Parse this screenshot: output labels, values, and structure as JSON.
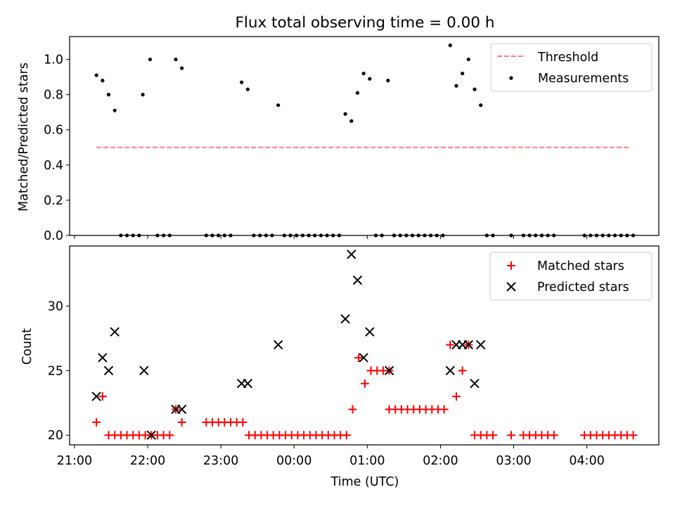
{
  "chart_data": [
    {
      "type": "scatter",
      "title": "Flux total observing time = 0.00 h",
      "xlabel": "",
      "ylabel": "Matched/Predicted stars",
      "xlim": [
        "20:56",
        "04:59"
      ],
      "ylim": [
        0,
        1.13
      ],
      "yticks": [
        0.0,
        0.2,
        0.4,
        0.6,
        0.8,
        1.0
      ],
      "ytick_labels": [
        "0.0",
        "0.2",
        "0.4",
        "0.6",
        "0.8",
        "1.0"
      ],
      "x_tick_times": [
        "21:00",
        "22:00",
        "23:00",
        "00:00",
        "01:00",
        "02:00",
        "03:00",
        "04:00"
      ],
      "x_tick_labels_shown": false,
      "legend_position": "upper right",
      "threshold": {
        "name": "Threshold",
        "value": 0.5,
        "x": [
          "21:18",
          "04:36"
        ],
        "color": "#ff7f7f",
        "style": "dashed"
      },
      "series": [
        {
          "name": "Measurements",
          "color": "#000000",
          "marker": "dot",
          "points": [
            [
              "21:18",
              0.91
            ],
            [
              "21:23",
              0.88
            ],
            [
              "21:28",
              0.8
            ],
            [
              "21:33",
              0.71
            ],
            [
              "21:56",
              0.8
            ],
            [
              "22:02",
              1.0
            ],
            [
              "22:23",
              1.0
            ],
            [
              "22:28",
              0.95
            ],
            [
              "23:17",
              0.87
            ],
            [
              "23:22",
              0.83
            ],
            [
              "23:47",
              0.74
            ],
            [
              "00:42",
              0.69
            ],
            [
              "00:47",
              0.65
            ],
            [
              "00:52",
              0.81
            ],
            [
              "00:57",
              0.92
            ],
            [
              "01:02",
              0.89
            ],
            [
              "01:17",
              0.88
            ],
            [
              "02:08",
              1.08
            ],
            [
              "02:13",
              0.85
            ],
            [
              "02:18",
              0.92
            ],
            [
              "02:23",
              1.0
            ],
            [
              "02:28",
              0.83
            ],
            [
              "02:33",
              0.74
            ],
            [
              "21:38",
              0
            ],
            [
              "21:43",
              0
            ],
            [
              "21:48",
              0
            ],
            [
              "21:53",
              0
            ],
            [
              "22:08",
              0
            ],
            [
              "22:13",
              0
            ],
            [
              "22:18",
              0
            ],
            [
              "22:48",
              0
            ],
            [
              "22:53",
              0
            ],
            [
              "22:58",
              0
            ],
            [
              "23:03",
              0
            ],
            [
              "23:08",
              0
            ],
            [
              "23:27",
              0
            ],
            [
              "23:32",
              0
            ],
            [
              "23:37",
              0
            ],
            [
              "23:42",
              0
            ],
            [
              "23:52",
              0
            ],
            [
              "23:57",
              0
            ],
            [
              "00:02",
              0
            ],
            [
              "00:07",
              0
            ],
            [
              "00:12",
              0
            ],
            [
              "00:17",
              0
            ],
            [
              "00:22",
              0
            ],
            [
              "00:27",
              0
            ],
            [
              "00:32",
              0
            ],
            [
              "00:37",
              0
            ],
            [
              "01:07",
              0
            ],
            [
              "01:12",
              0
            ],
            [
              "01:22",
              0
            ],
            [
              "01:27",
              0
            ],
            [
              "01:32",
              0
            ],
            [
              "01:37",
              0
            ],
            [
              "01:42",
              0
            ],
            [
              "01:47",
              0
            ],
            [
              "01:52",
              0
            ],
            [
              "01:57",
              0
            ],
            [
              "02:02",
              0
            ],
            [
              "02:38",
              0
            ],
            [
              "02:43",
              0
            ],
            [
              "02:58",
              0
            ],
            [
              "03:08",
              0
            ],
            [
              "03:13",
              0
            ],
            [
              "03:18",
              0
            ],
            [
              "03:23",
              0
            ],
            [
              "03:28",
              0
            ],
            [
              "03:33",
              0
            ],
            [
              "03:58",
              0
            ],
            [
              "04:03",
              0
            ],
            [
              "04:08",
              0
            ],
            [
              "04:13",
              0
            ],
            [
              "04:18",
              0
            ],
            [
              "04:23",
              0
            ],
            [
              "04:28",
              0
            ],
            [
              "04:33",
              0
            ],
            [
              "04:38",
              0
            ]
          ]
        }
      ]
    },
    {
      "type": "scatter",
      "title": "",
      "xlabel": "Time (UTC)",
      "ylabel": "Count",
      "xlim": [
        "20:56",
        "04:59"
      ],
      "ylim": [
        19.25,
        34.65
      ],
      "yticks": [
        20,
        25,
        30
      ],
      "ytick_labels": [
        "20",
        "25",
        "30"
      ],
      "x_tick_times": [
        "21:00",
        "22:00",
        "23:00",
        "00:00",
        "01:00",
        "02:00",
        "03:00",
        "04:00"
      ],
      "x_tick_labels": [
        "21:00",
        "22:00",
        "23:00",
        "00:00",
        "01:00",
        "02:00",
        "03:00",
        "04:00"
      ],
      "legend_position": "upper right",
      "series": [
        {
          "name": "Matched stars",
          "color": "#ff0000",
          "marker": "plus",
          "points": [
            [
              "21:18",
              21
            ],
            [
              "21:23",
              23
            ],
            [
              "21:28",
              20
            ],
            [
              "21:33",
              20
            ],
            [
              "21:38",
              20
            ],
            [
              "21:43",
              20
            ],
            [
              "21:48",
              20
            ],
            [
              "21:53",
              20
            ],
            [
              "21:58",
              20
            ],
            [
              "22:03",
              20
            ],
            [
              "22:08",
              20
            ],
            [
              "22:13",
              20
            ],
            [
              "22:18",
              20
            ],
            [
              "22:23",
              22
            ],
            [
              "22:28",
              21
            ],
            [
              "22:48",
              21
            ],
            [
              "22:53",
              21
            ],
            [
              "22:58",
              21
            ],
            [
              "23:03",
              21
            ],
            [
              "23:08",
              21
            ],
            [
              "23:13",
              21
            ],
            [
              "23:18",
              21
            ],
            [
              "23:23",
              20
            ],
            [
              "23:28",
              20
            ],
            [
              "23:33",
              20
            ],
            [
              "23:38",
              20
            ],
            [
              "23:43",
              20
            ],
            [
              "23:48",
              20
            ],
            [
              "23:53",
              20
            ],
            [
              "23:58",
              20
            ],
            [
              "00:03",
              20
            ],
            [
              "00:08",
              20
            ],
            [
              "00:13",
              20
            ],
            [
              "00:18",
              20
            ],
            [
              "00:23",
              20
            ],
            [
              "00:28",
              20
            ],
            [
              "00:33",
              20
            ],
            [
              "00:38",
              20
            ],
            [
              "00:43",
              20
            ],
            [
              "00:48",
              22
            ],
            [
              "00:53",
              26
            ],
            [
              "00:58",
              24
            ],
            [
              "01:03",
              25
            ],
            [
              "01:08",
              25
            ],
            [
              "01:13",
              25
            ],
            [
              "01:18",
              25
            ],
            [
              "01:18",
              22
            ],
            [
              "01:23",
              22
            ],
            [
              "01:28",
              22
            ],
            [
              "01:33",
              22
            ],
            [
              "01:38",
              22
            ],
            [
              "01:43",
              22
            ],
            [
              "01:48",
              22
            ],
            [
              "01:53",
              22
            ],
            [
              "01:58",
              22
            ],
            [
              "02:03",
              22
            ],
            [
              "02:08",
              27
            ],
            [
              "02:13",
              23
            ],
            [
              "02:18",
              25
            ],
            [
              "02:23",
              27
            ],
            [
              "02:28",
              20
            ],
            [
              "02:33",
              20
            ],
            [
              "02:38",
              20
            ],
            [
              "02:43",
              20
            ],
            [
              "02:58",
              20
            ],
            [
              "03:08",
              20
            ],
            [
              "03:13",
              20
            ],
            [
              "03:18",
              20
            ],
            [
              "03:23",
              20
            ],
            [
              "03:28",
              20
            ],
            [
              "03:33",
              20
            ],
            [
              "03:58",
              20
            ],
            [
              "04:03",
              20
            ],
            [
              "04:08",
              20
            ],
            [
              "04:13",
              20
            ],
            [
              "04:18",
              20
            ],
            [
              "04:23",
              20
            ],
            [
              "04:28",
              20
            ],
            [
              "04:33",
              20
            ],
            [
              "04:38",
              20
            ]
          ]
        },
        {
          "name": "Predicted stars",
          "color": "#000000",
          "marker": "x",
          "points": [
            [
              "21:18",
              23
            ],
            [
              "21:23",
              26
            ],
            [
              "21:28",
              25
            ],
            [
              "21:33",
              28
            ],
            [
              "21:57",
              25
            ],
            [
              "22:03",
              20
            ],
            [
              "22:23",
              22
            ],
            [
              "22:28",
              22
            ],
            [
              "23:17",
              24
            ],
            [
              "23:22",
              24
            ],
            [
              "23:47",
              27
            ],
            [
              "00:42",
              29
            ],
            [
              "00:47",
              34
            ],
            [
              "00:52",
              32
            ],
            [
              "00:57",
              26
            ],
            [
              "01:02",
              28
            ],
            [
              "01:18",
              25
            ],
            [
              "02:08",
              25
            ],
            [
              "02:13",
              27
            ],
            [
              "02:18",
              27
            ],
            [
              "02:23",
              27
            ],
            [
              "02:28",
              24
            ],
            [
              "02:33",
              27
            ]
          ]
        }
      ]
    }
  ]
}
